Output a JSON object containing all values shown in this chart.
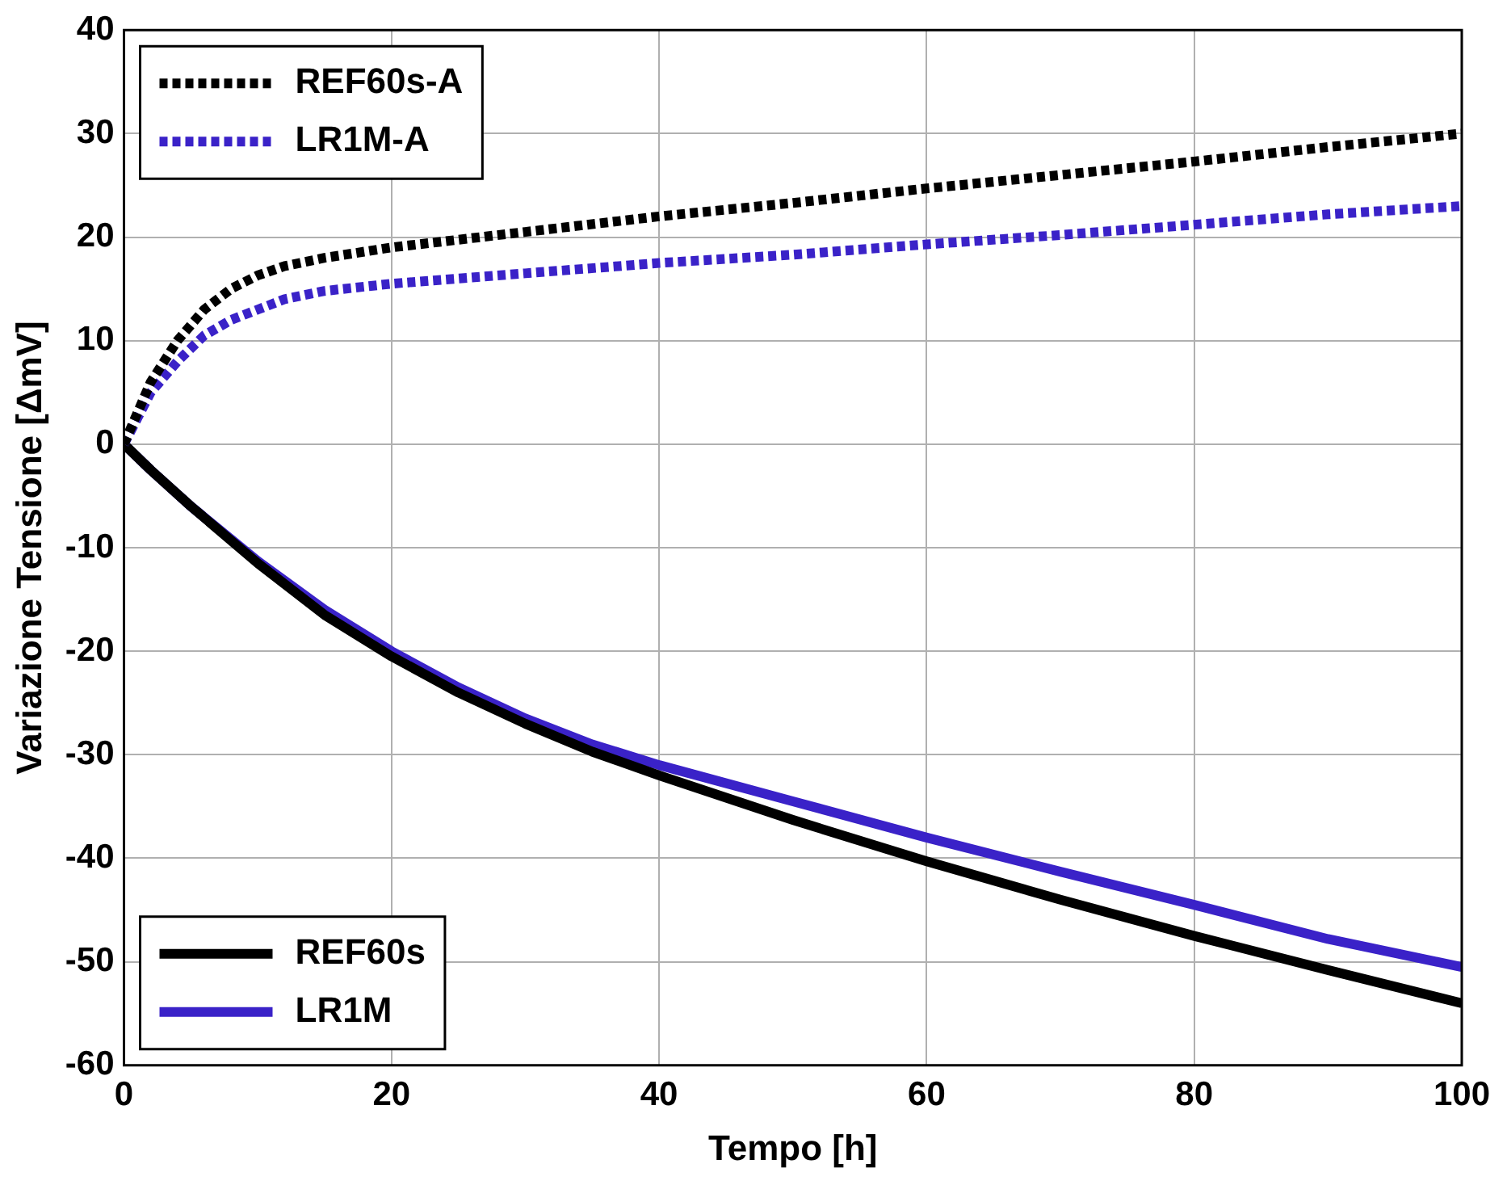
{
  "chart_data": {
    "type": "line",
    "xlabel": "Tempo [h]",
    "ylabel": "Variazione Tensione [ΔmV]",
    "xlim": [
      0,
      100
    ],
    "xticks": [
      0,
      20,
      40,
      60,
      80,
      100
    ],
    "ylim": [
      -60,
      40
    ],
    "yticks": [
      -60,
      -50,
      -40,
      -30,
      -20,
      -10,
      0,
      10,
      20,
      30,
      40
    ],
    "grid": true,
    "legend": [
      "top left",
      "bottom left"
    ],
    "marker": "none",
    "series": [
      {
        "name": "REF60s-A",
        "color": "#000000",
        "line_style": "dotted",
        "x": [
          0,
          1,
          2,
          4,
          6,
          8,
          10,
          12,
          15,
          20,
          30,
          40,
          50,
          60,
          70,
          80,
          90,
          100
        ],
        "values": [
          0,
          3,
          6,
          10,
          13,
          15,
          16.3,
          17.2,
          18,
          19,
          20.5,
          22,
          23.3,
          24.7,
          26,
          27.3,
          28.7,
          30
        ]
      },
      {
        "name": "LR1M-A",
        "color": "#3a22c8",
        "line_style": "dotted",
        "x": [
          0,
          1,
          2,
          4,
          6,
          8,
          10,
          12,
          15,
          20,
          30,
          40,
          50,
          60,
          70,
          80,
          90,
          100
        ],
        "values": [
          0,
          2.5,
          5,
          8,
          10.5,
          12,
          13,
          14,
          14.8,
          15.5,
          16.5,
          17.5,
          18.3,
          19.3,
          20.2,
          21.2,
          22.2,
          23
        ]
      },
      {
        "name": "REF60s",
        "color": "#000000",
        "line_style": "solid",
        "x": [
          0,
          2,
          5,
          10,
          15,
          20,
          25,
          30,
          35,
          40,
          50,
          60,
          70,
          80,
          90,
          100
        ],
        "values": [
          0,
          -2.5,
          -6,
          -11.5,
          -16.5,
          -20.5,
          -24,
          -27,
          -29.7,
          -32,
          -36.3,
          -40.3,
          -44,
          -47.5,
          -50.8,
          -54
        ]
      },
      {
        "name": "LR1M",
        "color": "#3a22c8",
        "line_style": "solid",
        "x": [
          0,
          2,
          5,
          10,
          15,
          20,
          25,
          30,
          35,
          40,
          50,
          60,
          70,
          80,
          90,
          100
        ],
        "values": [
          0,
          -2.5,
          -6,
          -11.3,
          -16,
          -20,
          -23.5,
          -26.5,
          -29,
          -31,
          -34.5,
          -38,
          -41.3,
          -44.5,
          -47.8,
          -50.5
        ]
      }
    ]
  }
}
